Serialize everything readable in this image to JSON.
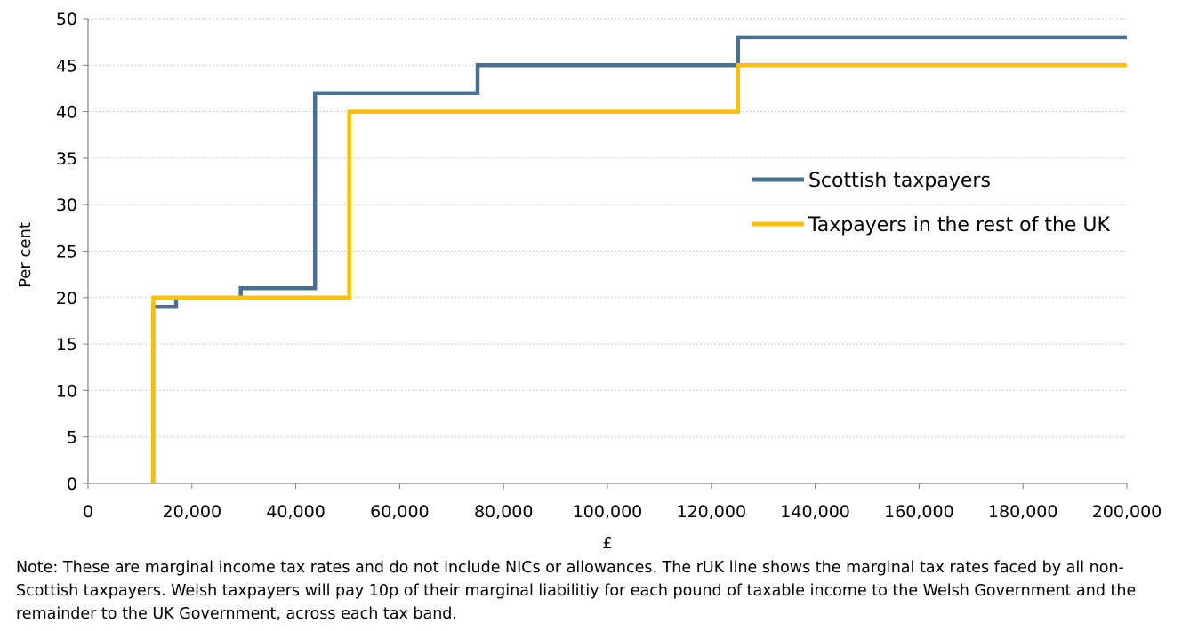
{
  "chart_data": {
    "type": "line",
    "step": true,
    "xlabel": "£",
    "ylabel": "Per cent",
    "xlim": [
      0,
      200000
    ],
    "ylim": [
      0,
      50
    ],
    "xticks": [
      0,
      20000,
      40000,
      60000,
      80000,
      100000,
      120000,
      140000,
      160000,
      180000,
      200000
    ],
    "xtick_labels": [
      "0",
      "20,000",
      "40,000",
      "60,000",
      "80,000",
      "100,000",
      "120,000",
      "140,000",
      "160,000",
      "180,000",
      "200,000"
    ],
    "yticks": [
      0,
      5,
      10,
      15,
      20,
      25,
      30,
      35,
      40,
      45,
      50
    ],
    "ytick_labels": [
      "0",
      "5",
      "10",
      "15",
      "20",
      "25",
      "30",
      "35",
      "40",
      "45",
      "50"
    ],
    "grid": "horizontal",
    "legend_position": "right",
    "series": [
      {
        "name": "Scottish taxpayers",
        "color": "#4a7090",
        "x": [
          12570,
          12570,
          16950,
          16950,
          29400,
          29400,
          43700,
          43700,
          75000,
          75000,
          125140,
          125140,
          200000
        ],
        "y": [
          0,
          19,
          19,
          20,
          20,
          21,
          21,
          42,
          42,
          45,
          45,
          48,
          48
        ]
      },
      {
        "name": "Taxpayers in the rest of the UK",
        "color": "#ffbf00",
        "x": [
          12570,
          12570,
          50270,
          50270,
          125140,
          125140,
          200000
        ],
        "y": [
          0,
          20,
          20,
          40,
          40,
          45,
          45
        ]
      }
    ]
  },
  "note": "Note: These are marginal income tax rates and do not include NICs or allowances. The rUK line shows the marginal tax rates faced by all non-Scottish taxpayers. Welsh taxpayers will pay 10p of their marginal liabilitiy for each pound of taxable income to the Welsh Government and the remainder to the UK Government, across each tax band."
}
